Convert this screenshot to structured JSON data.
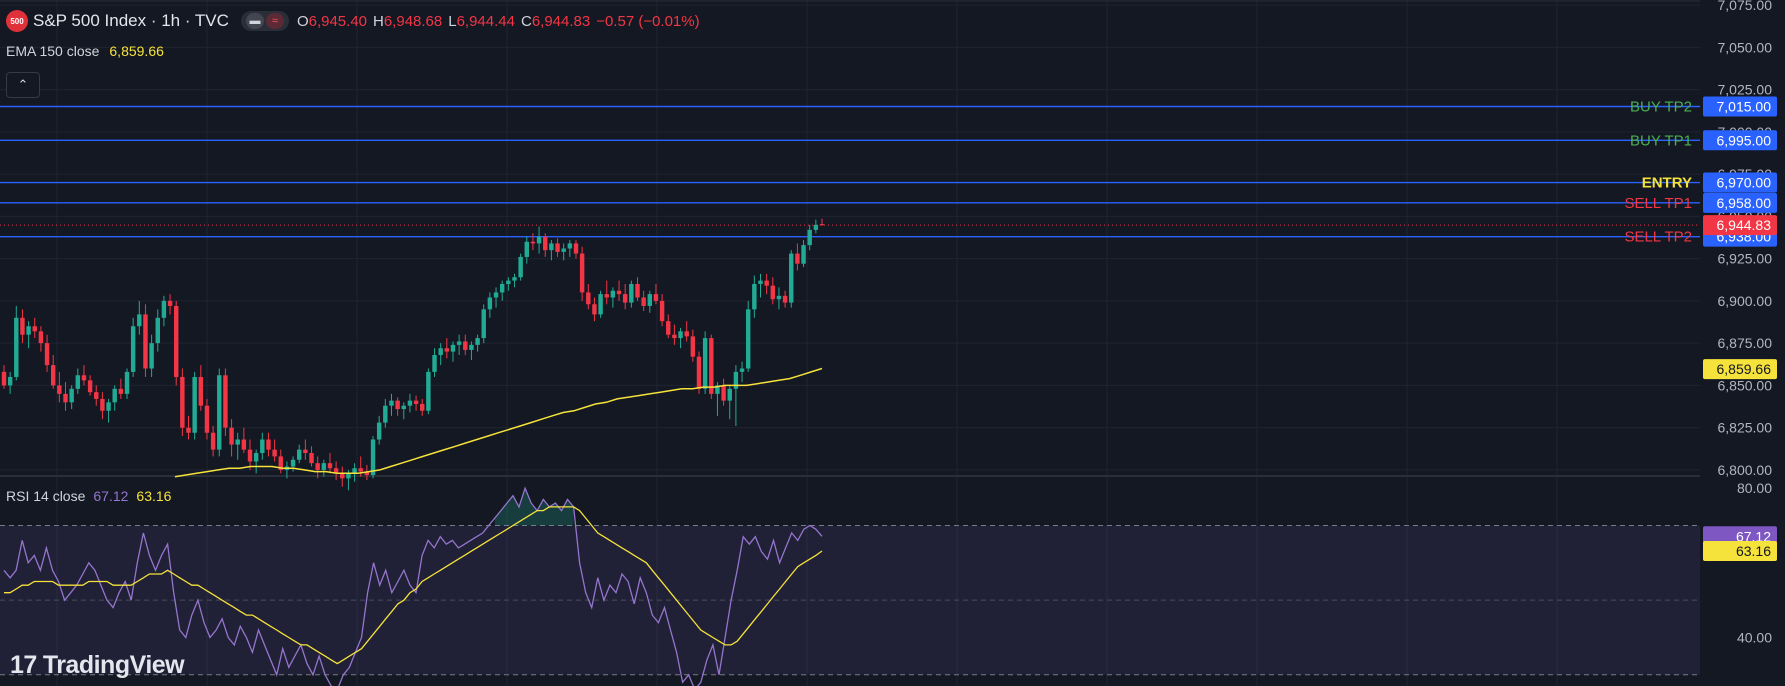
{
  "header": {
    "logo_text": "500",
    "title": "S&P 500 Index · 1h · TVC",
    "ohlc": [
      {
        "key": "O",
        "value": "6,945.40"
      },
      {
        "key": "H",
        "value": "6,948.68"
      },
      {
        "key": "L",
        "value": "6,944.44"
      },
      {
        "key": "C",
        "value": "6,944.83"
      }
    ],
    "change": "−0.57 (−0.01%)"
  },
  "ema_legend": {
    "label": "EMA 150 close",
    "value": "6,859.66"
  },
  "rsi_legend": {
    "label": "RSI 14 close",
    "value1": "67.12",
    "value2": "63.16"
  },
  "collapse_icon": "chevron-up-icon",
  "watermark": "TradingView",
  "colors": {
    "background": "#141823",
    "grid": "#1f2430",
    "up": "#22ab94",
    "down": "#f23645",
    "ema": "#f5e23b",
    "level_line": "#2962ff",
    "level_badge": "#2962ff",
    "rsi": "#9575cd",
    "rsi_ma": "#f5e23b",
    "buy_label": "#4caf50",
    "sell_label": "#f23645",
    "entry_label": "#f5e23b"
  },
  "chart_data": [
    {
      "type": "candlestick",
      "price_axis": {
        "ticks": [
          7075,
          7050,
          7025,
          7000,
          6975,
          6950,
          6925,
          6900,
          6875,
          6850,
          6825,
          6800
        ],
        "tick_labels": [
          "7,075.00",
          "7,050.00",
          "7,025.00",
          "7,000.00",
          "6,975.00",
          "6,950.00",
          "6,925.00",
          "6,900.00",
          "6,875.00",
          "6,850.00",
          "6,825.00",
          "6,800.00"
        ],
        "range": [
          6797,
          7078
        ]
      },
      "levels": [
        {
          "name": "BUY TP2",
          "value": 7015,
          "label": "7,015.00",
          "kind": "buy"
        },
        {
          "name": "BUY TP1",
          "value": 6995,
          "label": "6,995.00",
          "kind": "buy"
        },
        {
          "name": "ENTRY",
          "value": 6970,
          "label": "6,970.00",
          "kind": "entry"
        },
        {
          "name": "SELL TP1",
          "value": 6958,
          "label": "6,958.00",
          "kind": "sell"
        },
        {
          "name": "SELL TP2",
          "value": 6938,
          "label": "6,938.00",
          "kind": "sell"
        }
      ],
      "last_price": {
        "value": 6944.83,
        "label": "6,944.83"
      },
      "ema_150": {
        "name": "EMA 150 close",
        "last": {
          "value": 6859.66,
          "label": "6,859.66"
        },
        "values": [
          6796,
          6797,
          6798,
          6799,
          6800,
          6801,
          6801,
          6802,
          6802,
          6802,
          6801,
          6801,
          6800,
          6799,
          6799,
          6798,
          6798,
          6798,
          6799,
          6800,
          6802,
          6804,
          6806,
          6808,
          6810,
          6812,
          6814,
          6816,
          6818,
          6820,
          6822,
          6824,
          6826,
          6828,
          6830,
          6832,
          6834,
          6835,
          6837,
          6839,
          6840,
          6842,
          6843,
          6844,
          6845,
          6846,
          6847,
          6848,
          6848,
          6849,
          6849,
          6850,
          6850,
          6850,
          6851,
          6852,
          6853,
          6854,
          6856,
          6858,
          6860
        ]
      },
      "candles": [
        [
          6858,
          6862,
          6848,
          6850
        ],
        [
          6850,
          6858,
          6845,
          6855
        ],
        [
          6855,
          6897,
          6853,
          6890
        ],
        [
          6890,
          6895,
          6875,
          6880
        ],
        [
          6880,
          6888,
          6872,
          6885
        ],
        [
          6885,
          6890,
          6878,
          6882
        ],
        [
          6882,
          6885,
          6870,
          6875
        ],
        [
          6875,
          6880,
          6858,
          6862
        ],
        [
          6862,
          6868,
          6848,
          6850
        ],
        [
          6850,
          6858,
          6840,
          6845
        ],
        [
          6845,
          6852,
          6835,
          6840
        ],
        [
          6840,
          6850,
          6836,
          6848
        ],
        [
          6848,
          6860,
          6845,
          6856
        ],
        [
          6856,
          6862,
          6850,
          6853
        ],
        [
          6853,
          6856,
          6844,
          6846
        ],
        [
          6846,
          6850,
          6838,
          6842
        ],
        [
          6842,
          6846,
          6830,
          6835
        ],
        [
          6835,
          6842,
          6828,
          6840
        ],
        [
          6840,
          6850,
          6835,
          6848
        ],
        [
          6848,
          6854,
          6842,
          6845
        ],
        [
          6845,
          6860,
          6842,
          6858
        ],
        [
          6858,
          6890,
          6855,
          6885
        ],
        [
          6885,
          6900,
          6880,
          6892
        ],
        [
          6892,
          6898,
          6855,
          6860
        ],
        [
          6860,
          6880,
          6855,
          6875
        ],
        [
          6875,
          6895,
          6870,
          6890
        ],
        [
          6890,
          6903,
          6885,
          6900
        ],
        [
          6900,
          6904,
          6892,
          6897
        ],
        [
          6897,
          6900,
          6850,
          6855
        ],
        [
          6855,
          6860,
          6820,
          6825
        ],
        [
          6825,
          6832,
          6818,
          6822
        ],
        [
          6822,
          6858,
          6818,
          6855
        ],
        [
          6855,
          6862,
          6835,
          6838
        ],
        [
          6838,
          6842,
          6818,
          6822
        ],
        [
          6822,
          6826,
          6808,
          6812
        ],
        [
          6812,
          6860,
          6808,
          6856
        ],
        [
          6856,
          6860,
          6820,
          6825
        ],
        [
          6825,
          6830,
          6808,
          6815
        ],
        [
          6815,
          6822,
          6806,
          6818
        ],
        [
          6818,
          6825,
          6810,
          6812
        ],
        [
          6812,
          6818,
          6800,
          6805
        ],
        [
          6805,
          6812,
          6798,
          6810
        ],
        [
          6810,
          6822,
          6806,
          6818
        ],
        [
          6818,
          6822,
          6808,
          6812
        ],
        [
          6812,
          6818,
          6805,
          6808
        ],
        [
          6808,
          6812,
          6798,
          6800
        ],
        [
          6800,
          6805,
          6795,
          6802
        ],
        [
          6802,
          6808,
          6799,
          6806
        ],
        [
          6806,
          6815,
          6804,
          6812
        ],
        [
          6812,
          6818,
          6806,
          6810
        ],
        [
          6810,
          6814,
          6802,
          6804
        ],
        [
          6804,
          6808,
          6795,
          6800
        ],
        [
          6800,
          6806,
          6796,
          6804
        ],
        [
          6804,
          6810,
          6798,
          6801
        ],
        [
          6801,
          6805,
          6794,
          6798
        ],
        [
          6798,
          6802,
          6790,
          6795
        ],
        [
          6795,
          6800,
          6788,
          6798
        ],
        [
          6798,
          6804,
          6793,
          6801
        ],
        [
          6801,
          6808,
          6796,
          6799
        ],
        [
          6799,
          6803,
          6794,
          6797
        ],
        [
          6797,
          6820,
          6795,
          6818
        ],
        [
          6818,
          6832,
          6815,
          6828
        ],
        [
          6828,
          6842,
          6825,
          6838
        ],
        [
          6838,
          6845,
          6832,
          6841
        ],
        [
          6841,
          6843,
          6832,
          6836
        ],
        [
          6836,
          6840,
          6830,
          6838
        ],
        [
          6838,
          6845,
          6834,
          6841
        ],
        [
          6841,
          6844,
          6835,
          6839
        ],
        [
          6839,
          6842,
          6832,
          6835
        ],
        [
          6835,
          6860,
          6833,
          6858
        ],
        [
          6858,
          6872,
          6855,
          6868
        ],
        [
          6868,
          6875,
          6862,
          6872
        ],
        [
          6872,
          6878,
          6866,
          6870
        ],
        [
          6870,
          6876,
          6864,
          6874
        ],
        [
          6874,
          6880,
          6868,
          6876
        ],
        [
          6876,
          6880,
          6868,
          6871
        ],
        [
          6871,
          6876,
          6865,
          6874
        ],
        [
          6874,
          6880,
          6870,
          6878
        ],
        [
          6878,
          6898,
          6875,
          6895
        ],
        [
          6895,
          6905,
          6890,
          6902
        ],
        [
          6902,
          6908,
          6896,
          6905
        ],
        [
          6905,
          6912,
          6900,
          6910
        ],
        [
          6910,
          6914,
          6906,
          6912
        ],
        [
          6912,
          6916,
          6908,
          6914
        ],
        [
          6914,
          6928,
          6912,
          6926
        ],
        [
          6926,
          6938,
          6922,
          6935
        ],
        [
          6935,
          6940,
          6930,
          6934
        ],
        [
          6934,
          6944,
          6928,
          6938
        ],
        [
          6938,
          6940,
          6926,
          6930
        ],
        [
          6930,
          6936,
          6924,
          6934
        ],
        [
          6934,
          6937,
          6926,
          6929
        ],
        [
          6929,
          6934,
          6924,
          6931
        ],
        [
          6931,
          6936,
          6926,
          6934
        ],
        [
          6934,
          6936,
          6925,
          6928
        ],
        [
          6928,
          6932,
          6900,
          6905
        ],
        [
          6905,
          6910,
          6895,
          6898
        ],
        [
          6898,
          6902,
          6888,
          6892
        ],
        [
          6892,
          6906,
          6890,
          6904
        ],
        [
          6904,
          6912,
          6898,
          6902
        ],
        [
          6902,
          6908,
          6896,
          6906
        ],
        [
          6906,
          6912,
          6900,
          6904
        ],
        [
          6904,
          6910,
          6895,
          6899
        ],
        [
          6899,
          6912,
          6896,
          6910
        ],
        [
          6910,
          6914,
          6900,
          6902
        ],
        [
          6902,
          6906,
          6894,
          6897
        ],
        [
          6897,
          6906,
          6893,
          6904
        ],
        [
          6904,
          6910,
          6898,
          6900
        ],
        [
          6900,
          6904,
          6885,
          6888
        ],
        [
          6888,
          6892,
          6878,
          6880
        ],
        [
          6880,
          6886,
          6874,
          6878
        ],
        [
          6878,
          6884,
          6872,
          6882
        ],
        [
          6882,
          6888,
          6876,
          6879
        ],
        [
          6879,
          6883,
          6864,
          6867
        ],
        [
          6867,
          6870,
          6845,
          6848
        ],
        [
          6848,
          6882,
          6845,
          6878
        ],
        [
          6878,
          6880,
          6842,
          6845
        ],
        [
          6845,
          6852,
          6832,
          6850
        ],
        [
          6850,
          6854,
          6838,
          6841
        ],
        [
          6841,
          6850,
          6830,
          6848
        ],
        [
          6848,
          6862,
          6826,
          6858
        ],
        [
          6858,
          6864,
          6852,
          6860
        ],
        [
          6860,
          6900,
          6858,
          6895
        ],
        [
          6895,
          6915,
          6890,
          6910
        ],
        [
          6910,
          6916,
          6902,
          6912
        ],
        [
          6912,
          6916,
          6904,
          6909
        ],
        [
          6909,
          6914,
          6898,
          6901
        ],
        [
          6901,
          6908,
          6895,
          6903
        ],
        [
          6903,
          6906,
          6896,
          6899
        ],
        [
          6899,
          6930,
          6896,
          6928
        ],
        [
          6928,
          6934,
          6918,
          6922
        ],
        [
          6922,
          6936,
          6920,
          6933
        ],
        [
          6933,
          6945,
          6930,
          6942
        ],
        [
          6942,
          6948,
          6940,
          6945
        ],
        [
          6945.4,
          6948.68,
          6944.44,
          6944.83
        ]
      ]
    },
    {
      "type": "line",
      "name": "RSI 14 close",
      "axis": {
        "ticks": [
          80,
          40
        ],
        "tick_labels": [
          "80.00",
          "40.00"
        ],
        "range": [
          27,
          83
        ]
      },
      "band": [
        70,
        30
      ],
      "mid": 50,
      "rsi_last": {
        "value": 67.12,
        "label": "67.12"
      },
      "ma_last": {
        "value": 63.16,
        "label": "63.16"
      },
      "rsi": [
        58,
        56,
        58,
        66,
        60,
        62,
        58,
        64,
        58,
        55,
        50,
        52,
        54,
        57,
        60,
        58,
        54,
        50,
        48,
        52,
        55,
        50,
        60,
        68,
        62,
        58,
        62,
        65,
        52,
        42,
        40,
        46,
        50,
        44,
        40,
        42,
        45,
        40,
        38,
        43,
        40,
        36,
        42,
        38,
        34,
        30,
        37,
        32,
        35,
        38,
        33,
        30,
        35,
        30,
        27,
        26,
        30,
        32,
        36,
        40,
        52,
        60,
        54,
        58,
        52,
        55,
        58,
        54,
        52,
        62,
        66,
        64,
        67,
        65,
        66,
        64,
        65,
        66,
        67,
        68,
        70,
        72,
        74,
        76,
        78,
        75,
        80,
        76,
        74,
        77,
        75,
        76,
        74,
        77,
        75,
        60,
        52,
        48,
        56,
        50,
        54,
        52,
        57,
        55,
        49,
        56,
        52,
        46,
        44,
        48,
        42,
        36,
        28,
        30,
        26,
        28,
        34,
        38,
        30,
        40,
        50,
        58,
        67,
        65,
        67,
        63,
        61,
        66,
        60,
        64,
        68,
        66,
        69,
        70,
        69,
        67.12
      ],
      "rsi_ma": [
        52,
        52,
        53,
        54,
        54,
        55,
        55,
        55,
        55,
        54,
        54,
        54,
        54,
        54,
        55,
        55,
        55,
        55,
        54,
        54,
        54,
        54,
        55,
        56,
        57,
        57,
        57,
        58,
        57,
        56,
        55,
        54,
        54,
        53,
        52,
        51,
        50,
        49,
        48,
        47,
        46,
        46,
        45,
        44,
        43,
        42,
        41,
        40,
        39,
        38,
        38,
        37,
        36,
        35,
        34,
        33,
        34,
        35,
        36,
        37,
        39,
        41,
        43,
        45,
        47,
        49,
        50,
        52,
        53,
        55,
        56,
        57,
        58,
        59,
        60,
        61,
        62,
        63,
        64,
        65,
        66,
        67,
        68,
        69,
        70,
        71,
        72,
        73,
        74,
        74,
        75,
        75,
        75,
        75,
        75,
        74,
        72,
        70,
        68,
        67,
        66,
        65,
        64,
        63,
        62,
        61,
        60,
        58,
        56,
        54,
        52,
        50,
        48,
        46,
        44,
        42,
        41,
        40,
        39,
        38,
        38,
        39,
        41,
        43,
        45,
        47,
        49,
        51,
        53,
        55,
        57,
        59,
        60,
        61,
        62,
        63.16
      ]
    }
  ]
}
